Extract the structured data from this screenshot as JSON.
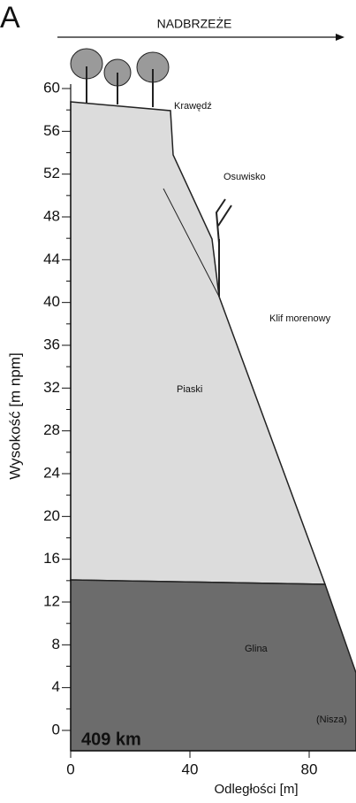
{
  "panel_label": "A",
  "direction_label": "NADBRZEŻE",
  "y_axis": {
    "label": "Wysokość [m npm]",
    "ticks": [
      "60",
      "56",
      "52",
      "48",
      "44",
      "40",
      "36",
      "32",
      "28",
      "24",
      "20",
      "16",
      "12",
      "8",
      "4",
      "0"
    ]
  },
  "x_axis": {
    "label": "Odległości [m]",
    "ticks": [
      "0",
      "40",
      "80"
    ]
  },
  "annotations": {
    "edge": "Krawędź",
    "landslide": "Osuwisko",
    "cliff": "Klif morenowy",
    "sands": "Piaski",
    "clay": "Glina",
    "niche": "(Nisza)"
  },
  "site_label": "409 km"
}
